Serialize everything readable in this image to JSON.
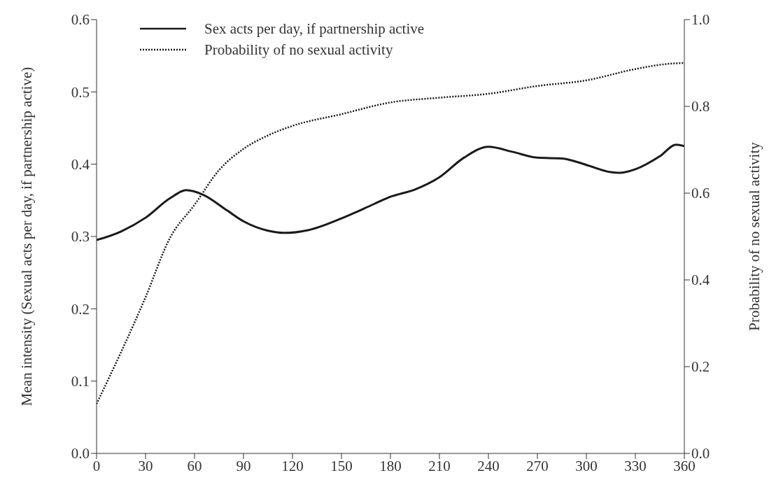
{
  "chart_data": {
    "type": "line",
    "ylabel": "Mean intensity (Sexual acts per day, if partnership active)",
    "y2label": "Probability of no sexual activity",
    "xlim": [
      0,
      360
    ],
    "xticks": [
      0,
      30,
      60,
      90,
      120,
      150,
      180,
      210,
      240,
      270,
      300,
      330,
      360
    ],
    "ylim": [
      0,
      0.6
    ],
    "yticks": [
      {
        "value": 0,
        "label": "0.0"
      },
      0.1,
      0.2,
      0.3,
      0.4,
      0.5,
      0.6
    ],
    "y2lim": [
      0,
      1
    ],
    "y2ticks": [
      {
        "value": 0,
        "label": "0.0"
      },
      0.2,
      0.4,
      0.6,
      0.8,
      {
        "value": 1,
        "label": "1.0"
      }
    ],
    "legend": "top left",
    "marker": "none",
    "series": [
      {
        "name": "Sex acts per day, if partnership active",
        "color": "#1a1a1a",
        "line_style": "solid",
        "x": [
          0,
          15,
          30,
          45,
          55,
          65,
          80,
          90,
          105,
          115,
          130,
          150,
          170,
          180,
          195,
          210,
          225,
          240,
          255,
          270,
          285,
          300,
          315,
          320,
          330,
          345,
          355,
          360
        ],
        "values": [
          0.295,
          0.307,
          0.326,
          0.353,
          0.364,
          0.358,
          0.336,
          0.321,
          0.308,
          0.305,
          0.309,
          0.325,
          0.345,
          0.355,
          0.365,
          0.382,
          0.409,
          0.424,
          0.417,
          0.409,
          0.408,
          0.399,
          0.389,
          0.388,
          0.393,
          0.411,
          0.427,
          0.425
        ]
      },
      {
        "name": "Probability of no sexual activity",
        "color": "#1a1a1a",
        "line_style": "dotted",
        "axis": "y2",
        "x": [
          0,
          30,
          45,
          60,
          75,
          90,
          105,
          120,
          150,
          180,
          210,
          240,
          270,
          300,
          330,
          350,
          360
        ],
        "values": [
          0.114,
          0.36,
          0.497,
          0.573,
          0.653,
          0.702,
          0.733,
          0.755,
          0.782,
          0.809,
          0.82,
          0.829,
          0.847,
          0.86,
          0.886,
          0.898,
          0.9
        ]
      }
    ]
  }
}
